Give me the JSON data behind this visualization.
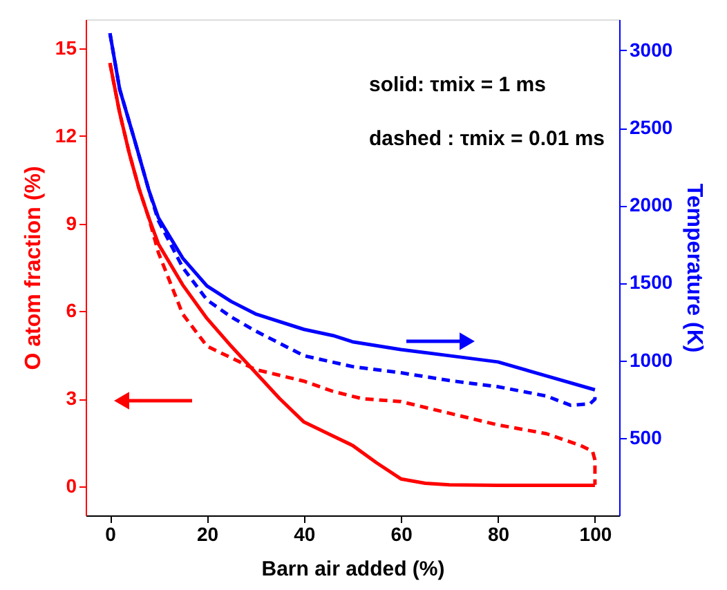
{
  "chart_data": {
    "type": "line",
    "xlabel": "Barn air added (%)",
    "ylabel": "O atom fraction (%)",
    "y2label": "Temperature (K)",
    "annotations": [
      "solid: τmix = 1 ms",
      "dashed : τmix = 0.01 ms"
    ],
    "xlim": [
      -5,
      105
    ],
    "xticks": [
      0,
      20,
      40,
      60,
      80,
      100
    ],
    "ylim": [
      -1,
      16
    ],
    "yticks": [
      0,
      3,
      6,
      9,
      12,
      15
    ],
    "y2lim": [
      0,
      3200
    ],
    "y2ticks": [
      500,
      1000,
      1500,
      2000,
      2500,
      3000
    ],
    "grid": false,
    "marker": "none",
    "series": [
      {
        "color": "#ff0000",
        "line_style": "solid",
        "x": [
          0,
          2,
          4,
          6,
          8,
          10,
          15,
          20,
          25,
          30,
          35,
          40,
          45,
          50,
          55,
          60,
          65,
          70,
          80,
          90,
          100
        ],
        "values": [
          14.5,
          12.8,
          11.4,
          10.2,
          9.2,
          8.3,
          6.9,
          5.75,
          4.8,
          3.9,
          3.0,
          2.2,
          1.8,
          1.4,
          0.8,
          0.25,
          0.1,
          0.05,
          0.03,
          0.03,
          0.03
        ]
      },
      {
        "color": "#ff0000",
        "line_style": "dashed",
        "x": [
          0,
          2,
          4,
          6,
          8,
          10,
          15,
          20,
          25,
          30,
          35,
          40,
          46,
          52,
          60,
          70,
          80,
          90,
          97,
          99.5,
          100,
          100
        ],
        "values": [
          14.5,
          12.8,
          11.4,
          10.2,
          9.2,
          8.0,
          5.9,
          4.8,
          4.4,
          4.0,
          3.8,
          3.6,
          3.25,
          3.0,
          2.9,
          2.5,
          2.1,
          1.8,
          1.4,
          1.2,
          0.9,
          0.05
        ]
      },
      {
        "color": "#0000ff",
        "line_style": "solid",
        "axis": "y2",
        "x": [
          0,
          2,
          5,
          8,
          10,
          15,
          20,
          25,
          30,
          40,
          46,
          50,
          60,
          70,
          80,
          90,
          100
        ],
        "values": [
          3110,
          2750,
          2430,
          2100,
          1920,
          1660,
          1480,
          1380,
          1300,
          1200,
          1160,
          1120,
          1070,
          1030,
          990,
          900,
          810
        ]
      },
      {
        "color": "#0000ff",
        "line_style": "dashed",
        "axis": "y2",
        "x": [
          0,
          2,
          5,
          8,
          10,
          15,
          20,
          25,
          30,
          40,
          50,
          60,
          70,
          80,
          90,
          95,
          99,
          100,
          100
        ],
        "values": [
          3110,
          2750,
          2430,
          2100,
          1900,
          1600,
          1390,
          1280,
          1190,
          1030,
          960,
          920,
          870,
          830,
          770,
          710,
          720,
          750,
          790
        ]
      }
    ]
  }
}
